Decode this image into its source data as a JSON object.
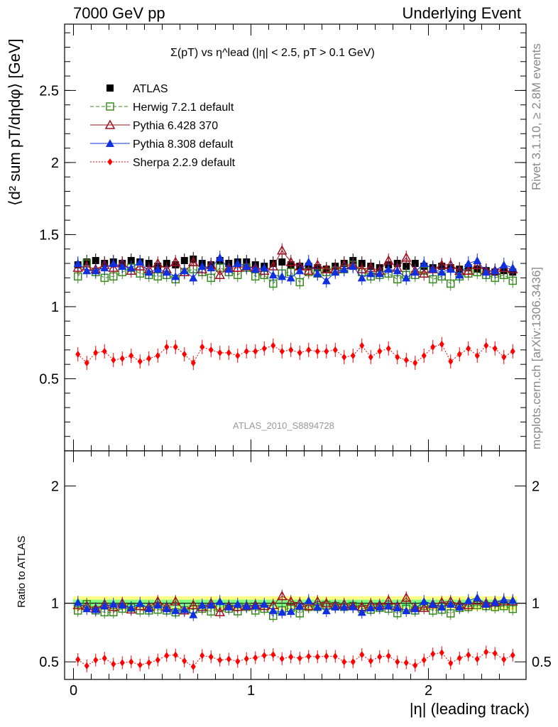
{
  "header": {
    "left": "7000 GeV pp",
    "right": "Underlying Event",
    "side_top": "Rivet 3.1.10, ≥ 2.8M events",
    "side_bottom": "mcplots.cern.ch [arXiv:1306.3436]"
  },
  "chart_data": [
    {
      "type": "scatter",
      "title": "Σ(pT) vs η^lead (|η| < 2.5, pT > 0.1 GeV)",
      "ylabel": "⟨d² sum pT/dηdφ⟩ [GeV]",
      "xlabel": "|η| (leading track)",
      "annotation": "ATLAS_2010_S8894728",
      "xlim": [
        -0.05,
        2.55
      ],
      "ylim": [
        0,
        2.96
      ],
      "yticks": [
        0.5,
        1,
        1.5,
        2,
        2.5
      ],
      "yticklabels": [
        "0.5",
        "1",
        "1.5",
        "2",
        "2.5"
      ],
      "legend_position": "top-left",
      "x": [
        0.025,
        0.075,
        0.125,
        0.175,
        0.225,
        0.275,
        0.325,
        0.375,
        0.425,
        0.475,
        0.525,
        0.575,
        0.625,
        0.675,
        0.725,
        0.775,
        0.825,
        0.875,
        0.925,
        0.975,
        1.025,
        1.075,
        1.125,
        1.175,
        1.225,
        1.275,
        1.325,
        1.375,
        1.425,
        1.475,
        1.525,
        1.575,
        1.625,
        1.675,
        1.725,
        1.775,
        1.825,
        1.875,
        1.925,
        1.975,
        2.025,
        2.075,
        2.125,
        2.175,
        2.225,
        2.275,
        2.325,
        2.375,
        2.425,
        2.475
      ],
      "series": [
        {
          "name": "ATLAS",
          "color": "#000000",
          "marker": "square-filled",
          "values": [
            1.29,
            1.31,
            1.32,
            1.3,
            1.31,
            1.3,
            1.32,
            1.31,
            1.3,
            1.28,
            1.3,
            1.29,
            1.32,
            1.33,
            1.3,
            1.29,
            1.32,
            1.3,
            1.31,
            1.31,
            1.29,
            1.28,
            1.3,
            1.31,
            1.29,
            1.28,
            1.28,
            1.27,
            1.26,
            1.28,
            1.3,
            1.32,
            1.3,
            1.28,
            1.27,
            1.29,
            1.3,
            1.28,
            1.3,
            1.28,
            1.27,
            1.28,
            1.27,
            1.26,
            1.27,
            1.26,
            1.25,
            1.24,
            1.25,
            1.24
          ]
        },
        {
          "name": "Herwig 7.2.1 default",
          "color": "#3a8b1f",
          "marker": "square-open",
          "line": "dashed",
          "values": [
            1.21,
            1.3,
            1.24,
            1.2,
            1.21,
            1.24,
            1.27,
            1.23,
            1.22,
            1.21,
            1.22,
            1.19,
            1.24,
            1.26,
            1.24,
            1.2,
            1.27,
            1.24,
            1.22,
            1.27,
            1.21,
            1.22,
            1.16,
            1.23,
            1.24,
            1.17,
            1.24,
            1.23,
            1.24,
            1.25,
            1.26,
            1.29,
            1.24,
            1.21,
            1.22,
            1.23,
            1.19,
            1.22,
            1.22,
            1.25,
            1.19,
            1.21,
            1.16,
            1.21,
            1.23,
            1.24,
            1.22,
            1.2,
            1.22,
            1.18
          ]
        },
        {
          "name": "Pythia 6.428 370",
          "color": "#a01020",
          "marker": "triangle-open",
          "line": "solid",
          "values": [
            1.27,
            1.28,
            1.26,
            1.29,
            1.27,
            1.3,
            1.25,
            1.28,
            1.26,
            1.3,
            1.26,
            1.31,
            1.24,
            1.31,
            1.26,
            1.29,
            1.22,
            1.27,
            1.27,
            1.28,
            1.27,
            1.25,
            1.28,
            1.39,
            1.31,
            1.28,
            1.25,
            1.29,
            1.26,
            1.26,
            1.29,
            1.29,
            1.26,
            1.27,
            1.25,
            1.32,
            1.27,
            1.34,
            1.25,
            1.23,
            1.26,
            1.29,
            1.29,
            1.25,
            1.25,
            1.29,
            1.25,
            1.25,
            1.27,
            1.26
          ]
        },
        {
          "name": "Pythia 8.308 default",
          "color": "#1030e0",
          "marker": "triangle-filled",
          "line": "solid",
          "values": [
            1.3,
            1.25,
            1.25,
            1.27,
            1.3,
            1.28,
            1.27,
            1.31,
            1.24,
            1.26,
            1.24,
            1.21,
            1.25,
            1.2,
            1.28,
            1.27,
            1.34,
            1.26,
            1.3,
            1.28,
            1.26,
            1.27,
            1.22,
            1.21,
            1.2,
            1.25,
            1.31,
            1.23,
            1.18,
            1.24,
            1.26,
            1.28,
            1.2,
            1.23,
            1.23,
            1.26,
            1.25,
            1.2,
            1.24,
            1.3,
            1.26,
            1.24,
            1.26,
            1.22,
            1.3,
            1.32,
            1.24,
            1.25,
            1.29,
            1.27
          ]
        },
        {
          "name": "Sherpa 2.2.9 default",
          "color": "#ff0000",
          "marker": "diamond-filled",
          "line": "dotted",
          "values": [
            0.67,
            0.61,
            0.68,
            0.69,
            0.63,
            0.64,
            0.66,
            0.62,
            0.64,
            0.66,
            0.72,
            0.72,
            0.67,
            0.61,
            0.72,
            0.7,
            0.68,
            0.68,
            0.66,
            0.69,
            0.69,
            0.71,
            0.73,
            0.69,
            0.7,
            0.68,
            0.7,
            0.69,
            0.69,
            0.7,
            0.65,
            0.66,
            0.73,
            0.65,
            0.69,
            0.71,
            0.65,
            0.63,
            0.61,
            0.66,
            0.72,
            0.74,
            0.62,
            0.67,
            0.71,
            0.66,
            0.73,
            0.71,
            0.65,
            0.69
          ]
        }
      ]
    },
    {
      "type": "scatter",
      "ylabel": "Ratio to ATLAS",
      "xlim": [
        -0.05,
        2.55
      ],
      "ylim": [
        0.35,
        2.3
      ],
      "yticks": [
        0.5,
        1,
        2
      ],
      "yticklabels": [
        "0.5",
        "1",
        "2"
      ],
      "xticks": [
        0,
        1,
        2
      ],
      "xticklabels": [
        "0",
        "1",
        "2"
      ],
      "bands": {
        "inner_color": "#7fff7f",
        "outer_color": "#ffff88",
        "inner_halfwidth": 0.03,
        "outer_halfwidth": 0.06
      }
    }
  ]
}
